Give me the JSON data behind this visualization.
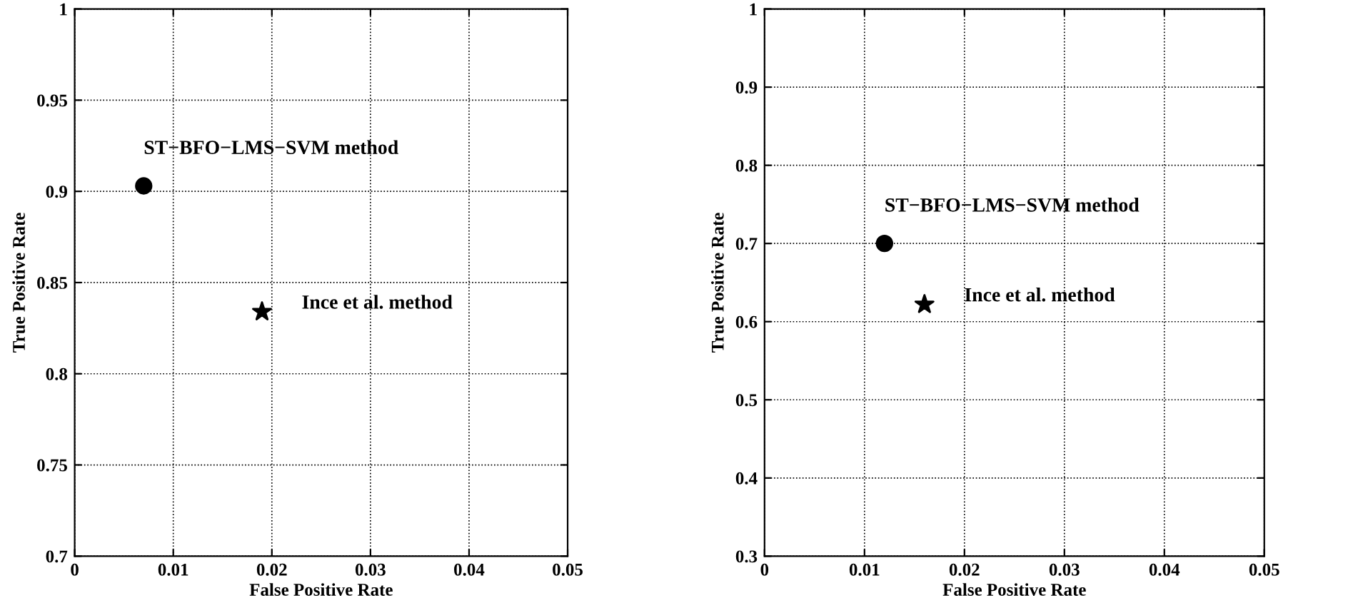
{
  "chart_data": [
    {
      "type": "scatter",
      "xlabel": "False Positive Rate",
      "ylabel": "True Positive Rate",
      "xlim": [
        0,
        0.05
      ],
      "ylim": [
        0.7,
        1
      ],
      "xticks": [
        0,
        0.01,
        0.02,
        0.03,
        0.04,
        0.05
      ],
      "yticks": [
        0.7,
        0.75,
        0.8,
        0.85,
        0.9,
        0.95,
        1
      ],
      "grid": true,
      "legend": false,
      "series": [
        {
          "color": "#000000",
          "marker": "circle",
          "x": [
            0.007
          ],
          "values": [
            0.903
          ]
        },
        {
          "color": "#000000",
          "marker": "star",
          "x": [
            0.019
          ],
          "values": [
            0.834
          ]
        }
      ],
      "annotations": [
        {
          "text": "ST−BFO−LMS−SVM method",
          "x": 0.007,
          "y": 0.903
        },
        {
          "text": "Ince et al. method",
          "x": 0.019,
          "y": 0.834
        }
      ]
    },
    {
      "type": "scatter",
      "xlabel": "False Positive Rate",
      "ylabel": "True Positive Rate",
      "xlim": [
        0,
        0.05
      ],
      "ylim": [
        0.3,
        1
      ],
      "xticks": [
        0,
        0.01,
        0.02,
        0.03,
        0.04,
        0.05
      ],
      "yticks": [
        0.3,
        0.4,
        0.5,
        0.6,
        0.7,
        0.8,
        0.9,
        1
      ],
      "grid": true,
      "legend": false,
      "series": [
        {
          "color": "#000000",
          "marker": "circle",
          "x": [
            0.012
          ],
          "values": [
            0.7
          ]
        },
        {
          "color": "#000000",
          "marker": "star",
          "x": [
            0.016
          ],
          "values": [
            0.622
          ]
        }
      ],
      "annotations": [
        {
          "text": "ST−BFO−LMS−SVM method",
          "x": 0.012,
          "y": 0.7
        },
        {
          "text": "Ince et al. method",
          "x": 0.016,
          "y": 0.622
        }
      ]
    }
  ]
}
